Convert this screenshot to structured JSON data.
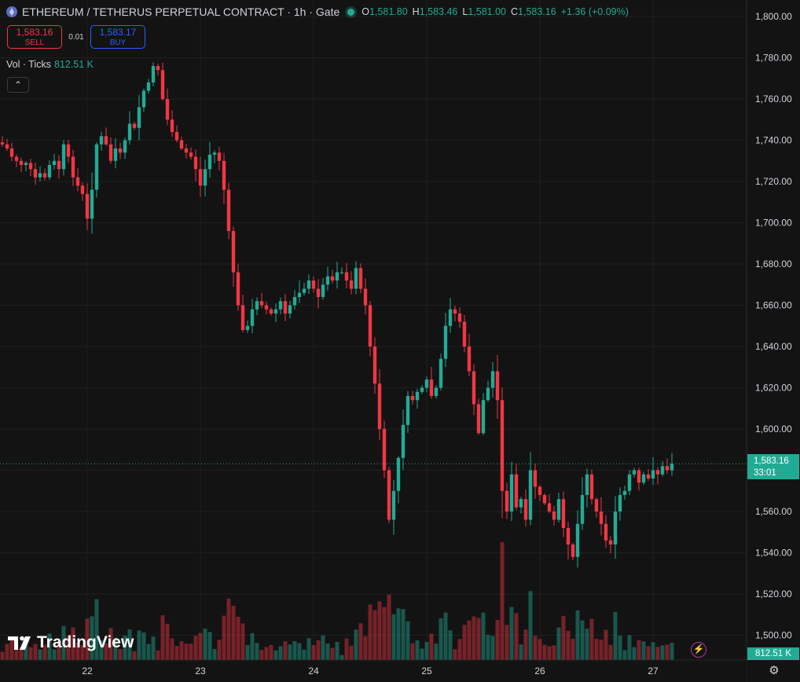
{
  "header": {
    "title": "ETHEREUM / TETHERUS PERPETUAL CONTRACT · 1h · Gate",
    "ohlc": [
      {
        "k": "O",
        "v": "1,581.80"
      },
      {
        "k": "H",
        "v": "1,583.46"
      },
      {
        "k": "L",
        "v": "1,581.00"
      },
      {
        "k": "C",
        "v": "1,583.16"
      },
      {
        "k": "",
        "v": "+1.36 (+0.09%)"
      }
    ]
  },
  "trade": {
    "sell_price": "1,583.16",
    "sell_label": "SELL",
    "spread": "0.01",
    "buy_price": "1,583.17",
    "buy_label": "BUY"
  },
  "volume_legend": {
    "label": "Vol · Ticks",
    "value": "812.51 K"
  },
  "brand": "TradingView",
  "price_tag": {
    "price": "1,583.16",
    "countdown": "33:01"
  },
  "volume_tag": "812.51 K",
  "icons": {
    "coin": "ethereum-icon",
    "collapse": "chevron-up-icon",
    "flash": "lightning-icon",
    "settings": "gear-icon"
  },
  "colors": {
    "up": "#22ab94",
    "down": "#f23645",
    "background": "#131313",
    "grid": "#1f1f1f"
  },
  "chart_data": {
    "type": "candlestick",
    "interval": "1h",
    "ylim": [
      1488,
      1808
    ],
    "y_ticks": [
      "1,500.00",
      "1,520.00",
      "1,540.00",
      "1,560.00",
      "1,580.00",
      "1,600.00",
      "1,620.00",
      "1,640.00",
      "1,660.00",
      "1,680.00",
      "1,700.00",
      "1,720.00",
      "1,740.00",
      "1,760.00",
      "1,780.00",
      "1,800.00"
    ],
    "x_ticks": [
      {
        "label": "22",
        "bar": 18
      },
      {
        "label": "23",
        "bar": 42
      },
      {
        "label": "24",
        "bar": 66
      },
      {
        "label": "25",
        "bar": 90
      },
      {
        "label": "26",
        "bar": 114
      },
      {
        "label": "27",
        "bar": 138
      }
    ],
    "last_price": 1583.16,
    "closes": [
      1738,
      1736,
      1732,
      1730,
      1728,
      1729,
      1726,
      1722,
      1724,
      1722,
      1728,
      1730,
      1726,
      1738,
      1732,
      1722,
      1718,
      1714,
      1702,
      1716,
      1738,
      1742,
      1738,
      1730,
      1736,
      1734,
      1740,
      1748,
      1746,
      1756,
      1764,
      1768,
      1776,
      1774,
      1760,
      1750,
      1744,
      1740,
      1736,
      1734,
      1732,
      1726,
      1718,
      1726,
      1733,
      1734,
      1730,
      1716,
      1696,
      1676,
      1660,
      1648,
      1650,
      1658,
      1662,
      1660,
      1658,
      1656,
      1658,
      1662,
      1656,
      1660,
      1664,
      1666,
      1668,
      1672,
      1668,
      1664,
      1670,
      1674,
      1672,
      1676,
      1676,
      1672,
      1668,
      1678,
      1668,
      1660,
      1640,
      1622,
      1600,
      1580,
      1556,
      1570,
      1586,
      1602,
      1616,
      1614,
      1618,
      1620,
      1624,
      1616,
      1620,
      1634,
      1650,
      1658,
      1656,
      1652,
      1640,
      1628,
      1612,
      1598,
      1614,
      1620,
      1628,
      1614,
      1570,
      1560,
      1578,
      1562,
      1566,
      1556,
      1580,
      1572,
      1568,
      1564,
      1560,
      1556,
      1566,
      1552,
      1544,
      1538,
      1554,
      1568,
      1578,
      1566,
      1560,
      1554,
      1546,
      1544,
      1560,
      1568,
      1570,
      1578,
      1580,
      1574,
      1578,
      1576,
      1580,
      1578,
      1582,
      1580,
      1583.16
    ]
  }
}
